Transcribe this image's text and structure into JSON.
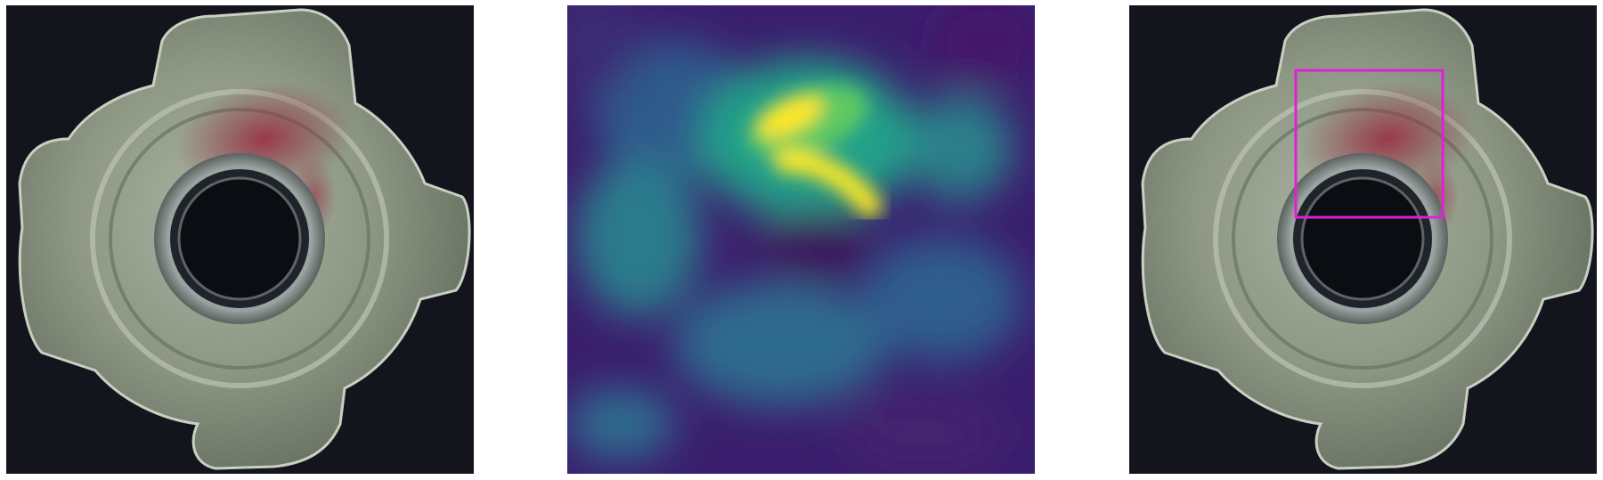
{
  "panels": [
    {
      "name": "original-image",
      "content": "metal-t-nut-with-red-stain"
    },
    {
      "name": "anomaly-heatmap",
      "colormap": "viridis"
    },
    {
      "name": "detection-overlay",
      "content": "metal-t-nut-with-red-stain",
      "box_present": true
    }
  ],
  "colors": {
    "background": "#14151c",
    "metal_light": "#c8cfc0",
    "metal_mid": "#8f9a86",
    "metal_dark": "#5b6557",
    "stain": "#8a3a45",
    "hole": "#0c0d12",
    "box": "#e020d8",
    "heat_low": "#440154",
    "heat_mid": "#21918c",
    "heat_high": "#fde725"
  }
}
